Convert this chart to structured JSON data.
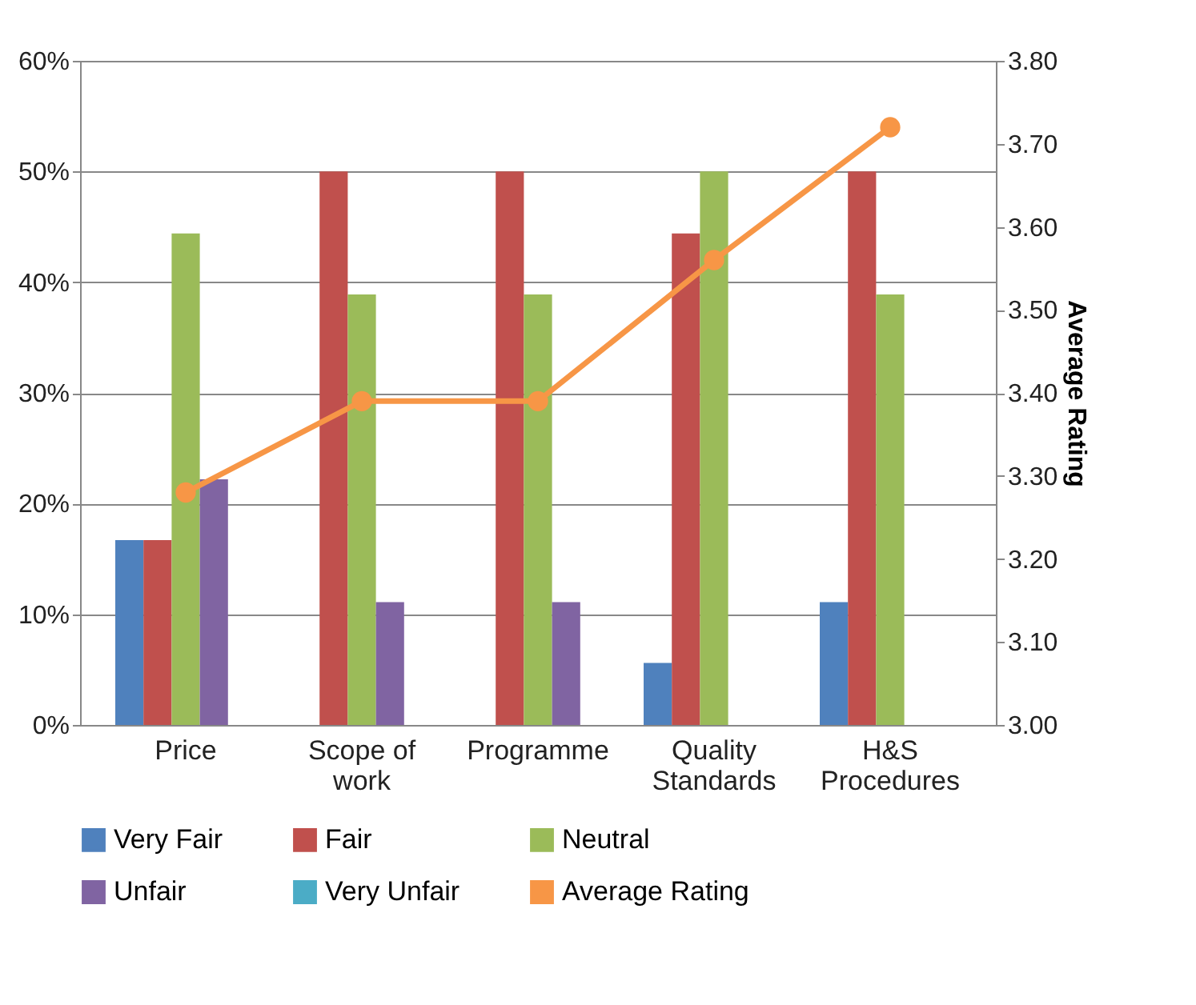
{
  "chart_data": {
    "type": "bar",
    "categories": [
      "Price",
      "Scope of work",
      "Programme",
      "Quality Standards",
      "H&S Procedures"
    ],
    "series": [
      {
        "name": "Very Fair",
        "color": "#4f81bd",
        "values": [
          16.7,
          0,
          0,
          5.6,
          11.1
        ]
      },
      {
        "name": "Fair",
        "color": "#c0504d",
        "values": [
          16.7,
          50,
          50,
          44.4,
          50
        ]
      },
      {
        "name": "Neutral",
        "color": "#9bbb59",
        "values": [
          44.4,
          38.9,
          38.9,
          50,
          38.9
        ]
      },
      {
        "name": "Unfair",
        "color": "#8064a2",
        "values": [
          22.2,
          11.1,
          11.1,
          0,
          0
        ]
      },
      {
        "name": "Very Unfair",
        "color": "#4bacc6",
        "values": [
          0,
          0,
          0,
          0,
          0
        ]
      },
      {
        "name": "Average Rating",
        "color": "#f79646",
        "type": "line",
        "axis": "y2",
        "marker": "circle",
        "line_style": "solid",
        "values": [
          3.28,
          3.39,
          3.39,
          3.56,
          3.72
        ]
      }
    ],
    "ylim": [
      0,
      60
    ],
    "yticks": [
      {
        "value": 0,
        "label": "0%"
      },
      {
        "value": 10,
        "label": "10%"
      },
      {
        "value": 20,
        "label": "20%"
      },
      {
        "value": 30,
        "label": "30%"
      },
      {
        "value": 40,
        "label": "40%"
      },
      {
        "value": 50,
        "label": "50%"
      },
      {
        "value": 60,
        "label": "60%"
      }
    ],
    "y2label": "Average Rating",
    "y2lim": [
      3,
      3.8
    ],
    "y2ticks": [
      {
        "value": 3,
        "label": "3.00"
      },
      {
        "value": 3.1,
        "label": "3.10"
      },
      {
        "value": 3.2,
        "label": "3.20"
      },
      {
        "value": 3.3,
        "label": "3.30"
      },
      {
        "value": 3.4,
        "label": "3.40"
      },
      {
        "value": 3.5,
        "label": "3.50"
      },
      {
        "value": 3.6,
        "label": "3.60"
      },
      {
        "value": 3.7,
        "label": "3.70"
      },
      {
        "value": 3.8,
        "label": "3.80"
      }
    ],
    "grid": "y",
    "legend": "bottom"
  }
}
